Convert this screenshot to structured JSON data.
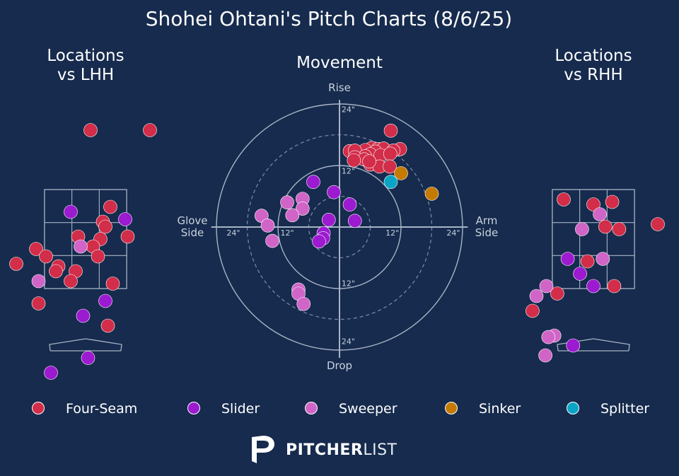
{
  "title": "Shohei Ohtani's Pitch Charts (8/6/25)",
  "panels": {
    "left_title": "Locations\nvs LHH",
    "mid_title": "Movement",
    "right_title": "Locations\nvs RHH"
  },
  "movement_labels": {
    "top": "Rise",
    "bottom": "Drop",
    "left": "Glove\nSide",
    "right": "Arm\nSide",
    "ring_outer": "24\"",
    "ring_inner": "12\""
  },
  "colors": {
    "background": "#162b4d",
    "Four-Seam": "#d22d49",
    "Slider": "#9c1ad0",
    "Sweeper": "#d065c7",
    "Sinker": "#c57a02",
    "Splitter": "#0aa5c6"
  },
  "legend": [
    "Four-Seam",
    "Slider",
    "Sweeper",
    "Sinker",
    "Splitter"
  ],
  "logo": {
    "bold": "PITCHER",
    "light": "LIST",
    "icon": "pitcherlist-p-icon"
  },
  "chart_data": [
    {
      "type": "scatter",
      "title": "Locations vs LHH",
      "xlim": [
        -2,
        2
      ],
      "ylim": [
        -0.2,
        5.2
      ],
      "zone": {
        "x": [
          -0.83,
          0.83
        ],
        "y": [
          1.5,
          3.5
        ]
      },
      "points": [
        {
          "x": 0.1,
          "y": 4.7,
          "pitch": "Four-Seam"
        },
        {
          "x": 1.3,
          "y": 4.7,
          "pitch": "Four-Seam"
        },
        {
          "x": 0.5,
          "y": 3.15,
          "pitch": "Four-Seam"
        },
        {
          "x": 0.35,
          "y": 2.85,
          "pitch": "Four-Seam"
        },
        {
          "x": 0.4,
          "y": 2.75,
          "pitch": "Four-Seam"
        },
        {
          "x": 0.85,
          "y": 2.55,
          "pitch": "Four-Seam"
        },
        {
          "x": -0.15,
          "y": 2.55,
          "pitch": "Four-Seam"
        },
        {
          "x": 0.3,
          "y": 2.5,
          "pitch": "Four-Seam"
        },
        {
          "x": -1.0,
          "y": 2.3,
          "pitch": "Four-Seam"
        },
        {
          "x": 0.15,
          "y": 2.35,
          "pitch": "Four-Seam"
        },
        {
          "x": -0.8,
          "y": 2.15,
          "pitch": "Four-Seam"
        },
        {
          "x": 0.25,
          "y": 2.15,
          "pitch": "Four-Seam"
        },
        {
          "x": -1.4,
          "y": 2.0,
          "pitch": "Four-Seam"
        },
        {
          "x": -0.55,
          "y": 1.95,
          "pitch": "Four-Seam"
        },
        {
          "x": -0.6,
          "y": 1.85,
          "pitch": "Four-Seam"
        },
        {
          "x": -0.2,
          "y": 1.85,
          "pitch": "Four-Seam"
        },
        {
          "x": -0.3,
          "y": 1.65,
          "pitch": "Four-Seam"
        },
        {
          "x": 0.55,
          "y": 1.6,
          "pitch": "Four-Seam"
        },
        {
          "x": -0.95,
          "y": 1.2,
          "pitch": "Four-Seam"
        },
        {
          "x": 0.45,
          "y": 0.75,
          "pitch": "Four-Seam"
        },
        {
          "x": -0.3,
          "y": 3.05,
          "pitch": "Slider"
        },
        {
          "x": 0.8,
          "y": 2.9,
          "pitch": "Slider"
        },
        {
          "x": 0.4,
          "y": 1.25,
          "pitch": "Slider"
        },
        {
          "x": -0.05,
          "y": 0.95,
          "pitch": "Slider"
        },
        {
          "x": 0.05,
          "y": 0.1,
          "pitch": "Slider"
        },
        {
          "x": -0.7,
          "y": -0.2,
          "pitch": "Slider"
        },
        {
          "x": -0.1,
          "y": 2.35,
          "pitch": "Sweeper"
        },
        {
          "x": -0.95,
          "y": 1.65,
          "pitch": "Sweeper"
        }
      ]
    },
    {
      "type": "scatter",
      "title": "Movement",
      "xlabel": "Glove Side / Arm Side",
      "ylabel": "Rise / Drop",
      "xlim": [
        -24,
        24
      ],
      "ylim": [
        -24,
        24
      ],
      "rings": [
        12,
        24
      ],
      "points": [
        {
          "x": 10,
          "y": 18.8,
          "pitch": "Four-Seam"
        },
        {
          "x": 6.3,
          "y": 15.4,
          "pitch": "Four-Seam"
        },
        {
          "x": 7.5,
          "y": 15.2,
          "pitch": "Four-Seam"
        },
        {
          "x": 8.6,
          "y": 15.3,
          "pitch": "Four-Seam"
        },
        {
          "x": 11.8,
          "y": 15.2,
          "pitch": "Four-Seam"
        },
        {
          "x": 5.0,
          "y": 15.0,
          "pitch": "Four-Seam"
        },
        {
          "x": 2.0,
          "y": 14.8,
          "pitch": "Four-Seam"
        },
        {
          "x": 3.0,
          "y": 14.9,
          "pitch": "Four-Seam"
        },
        {
          "x": 7.0,
          "y": 14.7,
          "pitch": "Four-Seam"
        },
        {
          "x": 10.5,
          "y": 14.9,
          "pitch": "Four-Seam"
        },
        {
          "x": 6.0,
          "y": 14.2,
          "pitch": "Four-Seam"
        },
        {
          "x": 8.0,
          "y": 14.0,
          "pitch": "Four-Seam"
        },
        {
          "x": 5.0,
          "y": 13.8,
          "pitch": "Four-Seam"
        },
        {
          "x": 3.0,
          "y": 13.6,
          "pitch": "Four-Seam"
        },
        {
          "x": 9.9,
          "y": 14.3,
          "pitch": "Four-Seam"
        },
        {
          "x": 4.8,
          "y": 13.2,
          "pitch": "Four-Seam"
        },
        {
          "x": 2.8,
          "y": 13.0,
          "pitch": "Four-Seam"
        },
        {
          "x": 6.0,
          "y": 12.2,
          "pitch": "Four-Seam"
        },
        {
          "x": 7.8,
          "y": 11.8,
          "pitch": "Four-Seam"
        },
        {
          "x": 9.8,
          "y": 11.8,
          "pitch": "Four-Seam"
        },
        {
          "x": 5.8,
          "y": 12.8,
          "pitch": "Four-Seam"
        },
        {
          "x": 12.0,
          "y": 10.5,
          "pitch": "Sinker"
        },
        {
          "x": 18.0,
          "y": 6.5,
          "pitch": "Sinker"
        },
        {
          "x": 10.0,
          "y": 8.8,
          "pitch": "Splitter"
        },
        {
          "x": -5.1,
          "y": 8.8,
          "pitch": "Slider"
        },
        {
          "x": -1.1,
          "y": 6.8,
          "pitch": "Slider"
        },
        {
          "x": 2.0,
          "y": 4.4,
          "pitch": "Slider"
        },
        {
          "x": -2.1,
          "y": 1.4,
          "pitch": "Slider"
        },
        {
          "x": 3.0,
          "y": 1.2,
          "pitch": "Slider"
        },
        {
          "x": -3.1,
          "y": -1.2,
          "pitch": "Slider"
        },
        {
          "x": -3.2,
          "y": -2.2,
          "pitch": "Slider"
        },
        {
          "x": -4.0,
          "y": -2.8,
          "pitch": "Slider"
        },
        {
          "x": -7.2,
          "y": 5.5,
          "pitch": "Sweeper"
        },
        {
          "x": -10.2,
          "y": 4.8,
          "pitch": "Sweeper"
        },
        {
          "x": -7.2,
          "y": 3.6,
          "pitch": "Sweeper"
        },
        {
          "x": -9.2,
          "y": 2.3,
          "pitch": "Sweeper"
        },
        {
          "x": -15.2,
          "y": 2.2,
          "pitch": "Sweeper"
        },
        {
          "x": -14.0,
          "y": 0.3,
          "pitch": "Sweeper"
        },
        {
          "x": -13.1,
          "y": -2.7,
          "pitch": "Sweeper"
        },
        {
          "x": -8.0,
          "y": -12.2,
          "pitch": "Sweeper"
        },
        {
          "x": -8.0,
          "y": -13.0,
          "pitch": "Sweeper"
        },
        {
          "x": -7.0,
          "y": -15.0,
          "pitch": "Sweeper"
        }
      ]
    },
    {
      "type": "scatter",
      "title": "Locations vs RHH",
      "xlim": [
        -2,
        2
      ],
      "ylim": [
        -0.2,
        5.2
      ],
      "zone": {
        "x": [
          -0.83,
          0.83
        ],
        "y": [
          1.5,
          3.5
        ]
      },
      "points": [
        {
          "x": -0.6,
          "y": 3.3,
          "pitch": "Four-Seam"
        },
        {
          "x": 0.0,
          "y": 3.2,
          "pitch": "Four-Seam"
        },
        {
          "x": 0.38,
          "y": 3.25,
          "pitch": "Four-Seam"
        },
        {
          "x": 0.24,
          "y": 2.75,
          "pitch": "Four-Seam"
        },
        {
          "x": 0.52,
          "y": 2.7,
          "pitch": "Four-Seam"
        },
        {
          "x": 1.3,
          "y": 2.8,
          "pitch": "Four-Seam"
        },
        {
          "x": -0.12,
          "y": 2.05,
          "pitch": "Four-Seam"
        },
        {
          "x": 0.42,
          "y": 1.55,
          "pitch": "Four-Seam"
        },
        {
          "x": -0.73,
          "y": 1.4,
          "pitch": "Four-Seam"
        },
        {
          "x": -1.23,
          "y": 1.05,
          "pitch": "Four-Seam"
        },
        {
          "x": -0.52,
          "y": 2.1,
          "pitch": "Slider"
        },
        {
          "x": -0.27,
          "y": 1.8,
          "pitch": "Slider"
        },
        {
          "x": 0.0,
          "y": 1.55,
          "pitch": "Slider"
        },
        {
          "x": -0.41,
          "y": 0.35,
          "pitch": "Slider"
        },
        {
          "x": 0.13,
          "y": 3.0,
          "pitch": "Sweeper"
        },
        {
          "x": -0.23,
          "y": 2.7,
          "pitch": "Sweeper"
        },
        {
          "x": 0.19,
          "y": 2.1,
          "pitch": "Sweeper"
        },
        {
          "x": -0.95,
          "y": 1.55,
          "pitch": "Sweeper"
        },
        {
          "x": -1.15,
          "y": 1.35,
          "pitch": "Sweeper"
        },
        {
          "x": -0.79,
          "y": 0.55,
          "pitch": "Sweeper"
        },
        {
          "x": -0.91,
          "y": 0.52,
          "pitch": "Sweeper"
        },
        {
          "x": -0.97,
          "y": 0.15,
          "pitch": "Sweeper"
        }
      ]
    }
  ]
}
